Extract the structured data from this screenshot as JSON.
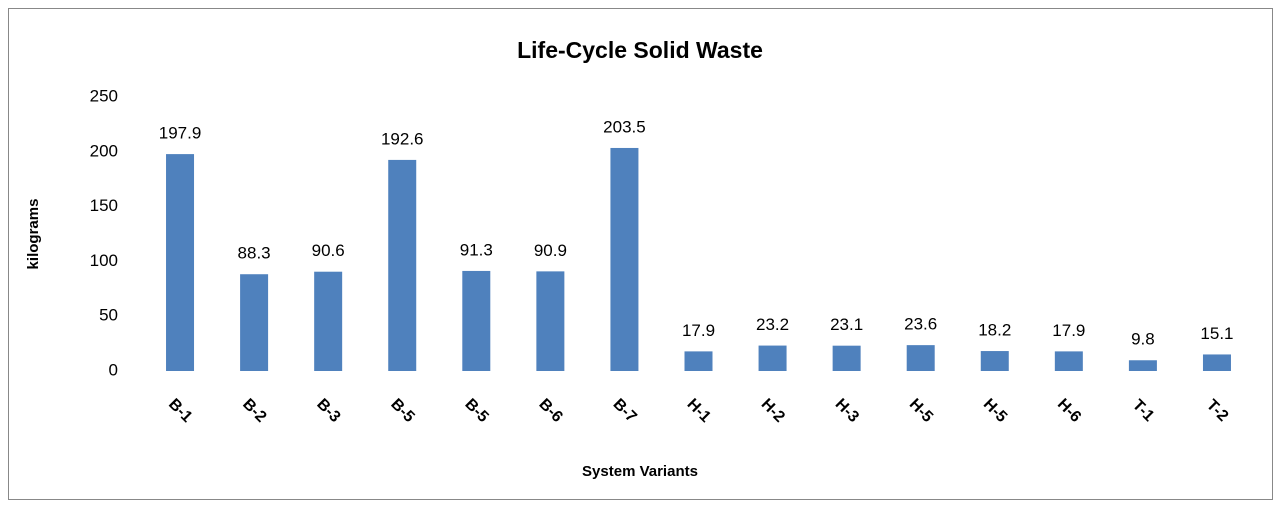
{
  "chart_data": {
    "type": "bar",
    "title": "Life-Cycle Solid Waste",
    "xlabel": "System Variants",
    "ylabel": "kilograms",
    "categories": [
      "B-1",
      "B-2",
      "B-3",
      "B-5",
      "B-5",
      "B-6",
      "B-7",
      "H-1",
      "H-2",
      "H-3",
      "H-5",
      "H-5",
      "H-6",
      "T-1",
      "T-2"
    ],
    "values": [
      197.9,
      88.3,
      90.6,
      192.6,
      91.3,
      90.9,
      203.5,
      17.9,
      23.2,
      23.1,
      23.6,
      18.2,
      17.9,
      9.8,
      15.1
    ],
    "color": "#4f81bd",
    "ylim": [
      0,
      250
    ],
    "yticks": [
      0,
      50,
      100,
      150,
      200,
      250
    ],
    "grid": false
  }
}
